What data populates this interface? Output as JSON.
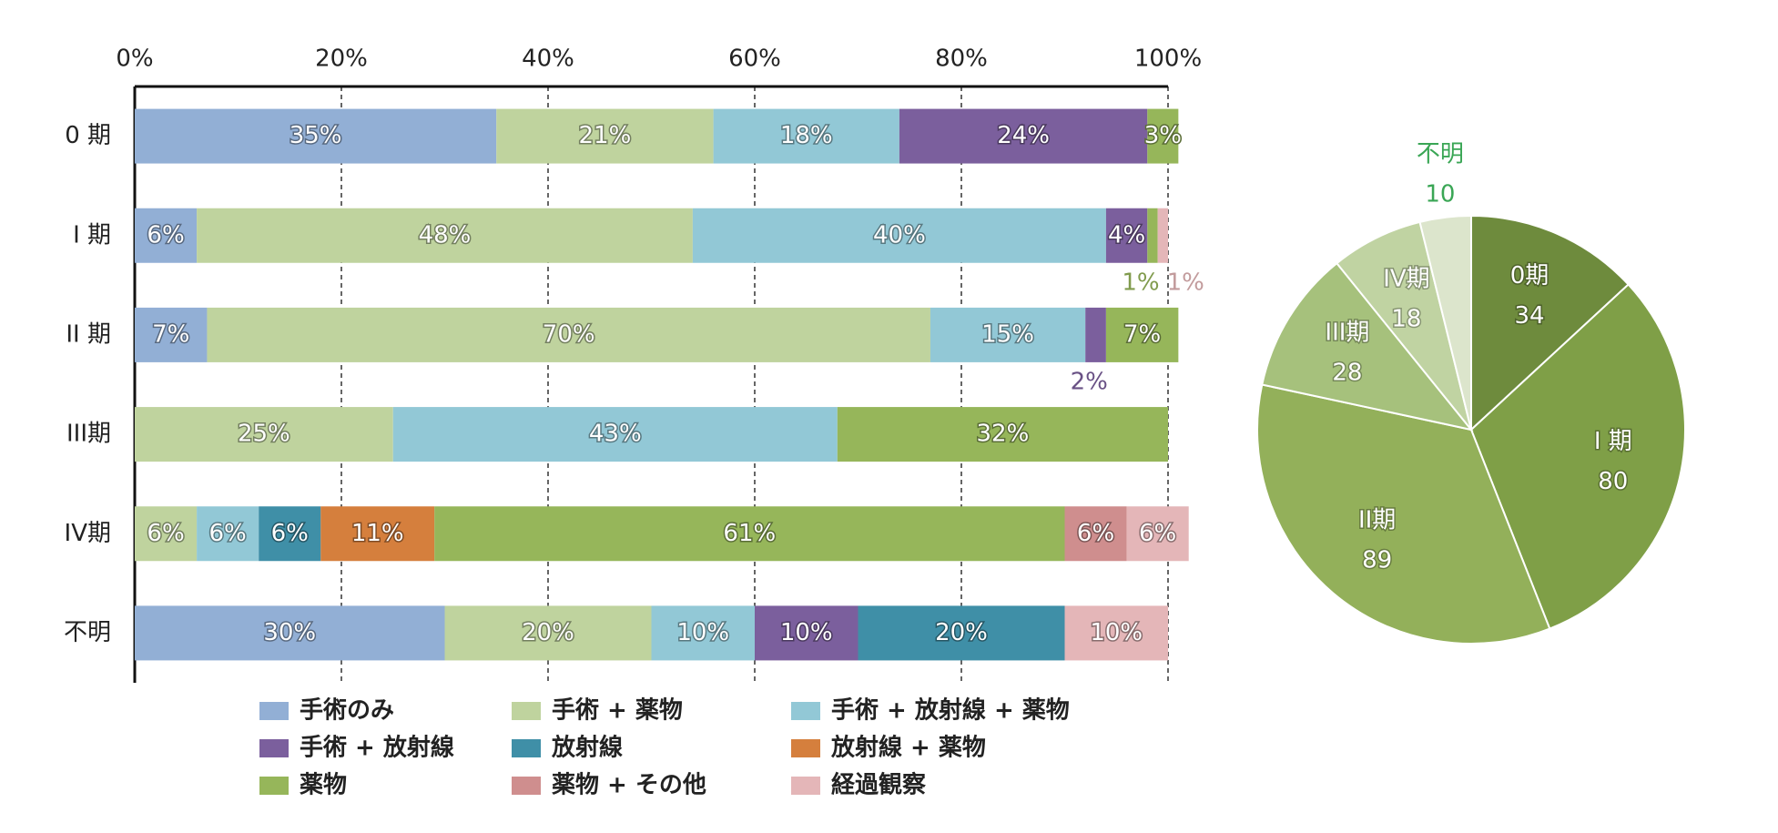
{
  "chart_data": [
    {
      "type": "stacked-barh",
      "categories": [
        "0 期",
        "I 期",
        "II 期",
        "III期",
        "IV期",
        "不明"
      ],
      "xlim": [
        0,
        100
      ],
      "xticks": [
        {
          "value": 0,
          "label": "0%"
        },
        {
          "value": 20,
          "label": "20%"
        },
        {
          "value": 40,
          "label": "40%"
        },
        {
          "value": 60,
          "label": "60%"
        },
        {
          "value": 80,
          "label": "80%"
        },
        {
          "value": 100,
          "label": "100%"
        }
      ],
      "grid": true,
      "series": [
        {
          "name": "手術のみ",
          "color": "#92afd5",
          "values": [
            35,
            6,
            7,
            null,
            null,
            30
          ],
          "value_labels": [
            "35%",
            "6%",
            "7%",
            null,
            null,
            "30%"
          ]
        },
        {
          "name": "手術 + 薬物",
          "color": "#bfd39e",
          "values": [
            21,
            48,
            70,
            25,
            6,
            20
          ],
          "value_labels": [
            "21%",
            "48%",
            "70%",
            "25%",
            "6%",
            "20%"
          ]
        },
        {
          "name": "手術 + 放射線 + 薬物",
          "color": "#92c8d6",
          "values": [
            18,
            40,
            15,
            43,
            6,
            10
          ],
          "value_labels": [
            "18%",
            "40%",
            "15%",
            "43%",
            "6%",
            "10%"
          ]
        },
        {
          "name": "手術 + 放射線",
          "color": "#7b5f9d",
          "values": [
            24,
            4,
            2,
            null,
            null,
            10
          ],
          "value_labels": [
            "24%",
            "4%",
            "2%",
            null,
            null,
            "10%"
          ]
        },
        {
          "name": "放射線",
          "color": "#3f8fa7",
          "values": [
            null,
            null,
            null,
            null,
            6,
            20
          ],
          "value_labels": [
            null,
            null,
            null,
            null,
            "6%",
            "20%"
          ]
        },
        {
          "name": "放射線 + 薬物",
          "color": "#d57f3d",
          "values": [
            null,
            null,
            null,
            null,
            11,
            null
          ],
          "value_labels": [
            null,
            null,
            null,
            null,
            "11%",
            null
          ]
        },
        {
          "name": "薬物",
          "color": "#96b65a",
          "values": [
            3,
            1,
            7,
            32,
            61,
            null
          ],
          "value_labels": [
            "3%",
            "1%",
            "7%",
            "32%",
            "61%",
            null
          ]
        },
        {
          "name": "薬物 + その他",
          "color": "#cf8e8e",
          "values": [
            null,
            null,
            null,
            null,
            6,
            null
          ],
          "value_labels": [
            null,
            null,
            null,
            null,
            "6%",
            null
          ]
        },
        {
          "name": "経過観察",
          "color": "#e4b6b8",
          "values": [
            null,
            1,
            null,
            null,
            6,
            10
          ],
          "value_labels": [
            null,
            "1%",
            null,
            null,
            "6%",
            "10%"
          ]
        }
      ]
    },
    {
      "type": "pie",
      "categories": [
        "0期",
        "I 期",
        "II期",
        "III期",
        "IV期",
        "不明"
      ],
      "values": [
        34,
        80,
        89,
        28,
        18,
        10
      ],
      "colors": [
        "#6e8b3d",
        "#7f9f47",
        "#93b05a",
        "#a6c17c",
        "#c0d3a2",
        "#dce5cc"
      ]
    }
  ]
}
